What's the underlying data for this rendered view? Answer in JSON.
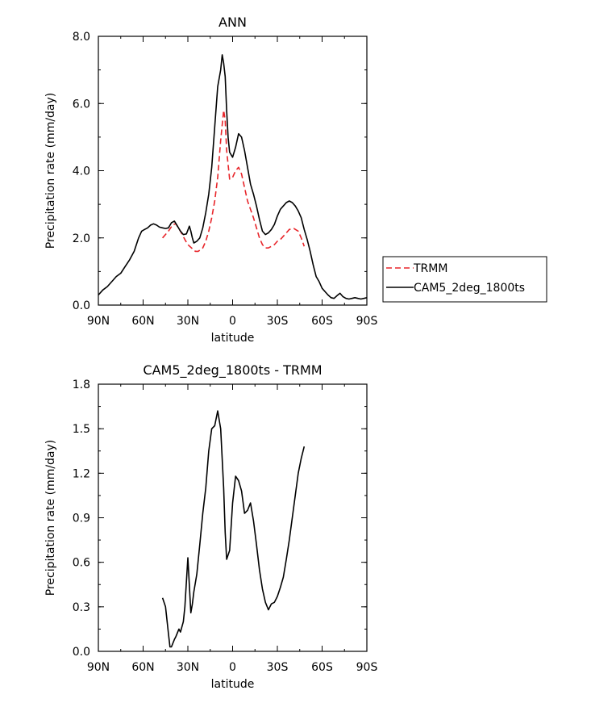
{
  "chart_data": [
    {
      "type": "line",
      "title": "ANN",
      "xlabel": "latitude",
      "ylabel": "Precipitation rate (mm/day)",
      "xlim": [
        90,
        -90
      ],
      "ylim": [
        0,
        8
      ],
      "x_ticks": [
        90,
        60,
        30,
        0,
        -30,
        -60,
        -90
      ],
      "x_tick_labels": [
        "90N",
        "60N",
        "30N",
        "0",
        "30S",
        "60S",
        "90S"
      ],
      "y_ticks": [
        0,
        2,
        4,
        6,
        8
      ],
      "y_tick_labels": [
        "0.0",
        "2.0",
        "4.0",
        "6.0",
        "8.0"
      ],
      "legend": {
        "placement": "right",
        "entries": [
          "TRMM",
          "CAM5_2deg_1800ts"
        ]
      },
      "series": [
        {
          "name": "TRMM",
          "color": "#e8252a",
          "dash": "dashed",
          "x": [
            47,
            43,
            40,
            38,
            35,
            32,
            30,
            27,
            25,
            23,
            20,
            18,
            16,
            14,
            12,
            10,
            8,
            6,
            5,
            4,
            2,
            0,
            -2,
            -4,
            -6,
            -8,
            -10,
            -12,
            -14,
            -16,
            -18,
            -20,
            -22,
            -24,
            -26,
            -28,
            -30,
            -32,
            -35,
            -38,
            -41,
            -44,
            -46,
            -48
          ],
          "y": [
            2.0,
            2.2,
            2.4,
            2.42,
            2.2,
            1.95,
            1.8,
            1.68,
            1.6,
            1.6,
            1.7,
            1.9,
            2.2,
            2.6,
            3.1,
            3.8,
            4.9,
            5.8,
            5.5,
            4.6,
            3.75,
            3.8,
            4.0,
            4.1,
            3.9,
            3.5,
            3.1,
            2.85,
            2.6,
            2.3,
            2.0,
            1.8,
            1.7,
            1.7,
            1.75,
            1.8,
            1.9,
            1.95,
            2.1,
            2.25,
            2.28,
            2.2,
            2.0,
            1.75
          ]
        },
        {
          "name": "CAM5_2deg_1800ts",
          "color": "#000000",
          "dash": "solid",
          "x": [
            90,
            87,
            84,
            81,
            78,
            75,
            72,
            69,
            66,
            63,
            61,
            59,
            57,
            55,
            53,
            51,
            49,
            47,
            45,
            43,
            41,
            39,
            37,
            35,
            33,
            31,
            29,
            28,
            27,
            26,
            24,
            22,
            20,
            18,
            16,
            14,
            12,
            10,
            8,
            7,
            6,
            5,
            4,
            3,
            2,
            0,
            -2,
            -4,
            -6,
            -8,
            -10,
            -12,
            -14,
            -16,
            -18,
            -20,
            -22,
            -24,
            -26,
            -28,
            -30,
            -32,
            -34,
            -36,
            -38,
            -40,
            -42,
            -44,
            -46,
            -48,
            -50,
            -52,
            -54,
            -56,
            -58,
            -60,
            -62,
            -64,
            -66,
            -68,
            -70,
            -72,
            -74,
            -76,
            -78,
            -80,
            -82,
            -84,
            -86,
            -88,
            -90
          ],
          "y": [
            0.3,
            0.45,
            0.55,
            0.7,
            0.85,
            0.95,
            1.15,
            1.35,
            1.6,
            2.0,
            2.2,
            2.25,
            2.3,
            2.38,
            2.42,
            2.38,
            2.32,
            2.3,
            2.28,
            2.3,
            2.45,
            2.5,
            2.35,
            2.2,
            2.1,
            2.12,
            2.35,
            2.2,
            2.0,
            1.85,
            1.9,
            2.0,
            2.3,
            2.75,
            3.3,
            4.1,
            5.3,
            6.5,
            7.0,
            7.45,
            7.2,
            6.8,
            5.8,
            5.0,
            4.55,
            4.4,
            4.7,
            5.1,
            5.0,
            4.6,
            4.1,
            3.6,
            3.3,
            2.95,
            2.55,
            2.2,
            2.1,
            2.15,
            2.25,
            2.4,
            2.65,
            2.85,
            2.95,
            3.05,
            3.1,
            3.05,
            2.95,
            2.8,
            2.6,
            2.25,
            1.95,
            1.6,
            1.2,
            0.85,
            0.7,
            0.5,
            0.4,
            0.3,
            0.22,
            0.2,
            0.28,
            0.35,
            0.25,
            0.2,
            0.18,
            0.2,
            0.22,
            0.2,
            0.18,
            0.2,
            0.22
          ]
        }
      ]
    },
    {
      "type": "line",
      "title": "CAM5_2deg_1800ts - TRMM",
      "xlabel": "latitude",
      "ylabel": "Precipitation rate (mm/day)",
      "xlim": [
        90,
        -90
      ],
      "ylim": [
        0,
        1.8
      ],
      "x_ticks": [
        90,
        60,
        30,
        0,
        -30,
        -60,
        -90
      ],
      "x_tick_labels": [
        "90N",
        "60N",
        "30N",
        "0",
        "30S",
        "60S",
        "90S"
      ],
      "y_ticks": [
        0,
        0.3,
        0.6,
        0.9,
        1.2,
        1.5,
        1.8
      ],
      "y_tick_labels": [
        "0.0",
        "0.3",
        "0.6",
        "0.9",
        "1.2",
        "1.5",
        "1.8"
      ],
      "series": [
        {
          "name": "CAM5_2deg_1800ts - TRMM",
          "color": "#000000",
          "dash": "solid",
          "x": [
            47,
            45,
            43,
            42,
            41,
            39,
            38,
            36,
            35,
            33,
            32,
            30,
            28,
            27,
            26,
            24,
            22,
            20,
            18,
            16,
            14,
            12,
            10,
            8,
            6,
            5,
            4,
            2,
            0,
            -2,
            -4,
            -6,
            -8,
            -10,
            -12,
            -14,
            -16,
            -18,
            -20,
            -22,
            -24,
            -26,
            -28,
            -30,
            -32,
            -34,
            -36,
            -38,
            -40,
            -42,
            -44,
            -46,
            -48
          ],
          "y": [
            0.36,
            0.3,
            0.12,
            0.03,
            0.03,
            0.08,
            0.1,
            0.15,
            0.13,
            0.2,
            0.3,
            0.63,
            0.26,
            0.32,
            0.4,
            0.52,
            0.72,
            0.93,
            1.1,
            1.35,
            1.5,
            1.52,
            1.62,
            1.5,
            1.1,
            0.8,
            0.62,
            0.68,
            1.0,
            1.18,
            1.15,
            1.08,
            0.93,
            0.95,
            1.0,
            0.88,
            0.72,
            0.55,
            0.42,
            0.33,
            0.28,
            0.32,
            0.33,
            0.37,
            0.43,
            0.5,
            0.62,
            0.75,
            0.9,
            1.05,
            1.2,
            1.3,
            1.38
          ]
        }
      ]
    }
  ]
}
